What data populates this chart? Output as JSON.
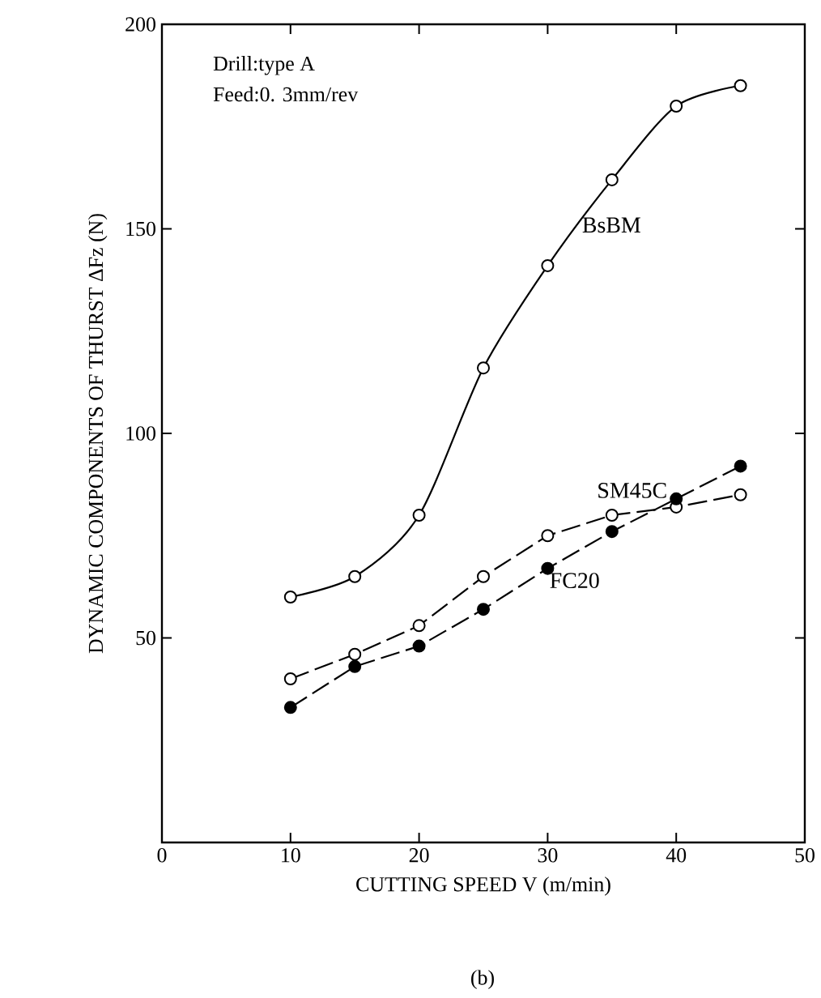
{
  "chart_data": {
    "type": "line",
    "xlabel": "CUTTING SPEED V (m/min)",
    "ylabel": "DYNAMIC COMPONENTS OF THURST ΔFz (N)",
    "x": [
      10,
      15,
      20,
      25,
      30,
      35,
      40,
      45
    ],
    "series": [
      {
        "name": "BsBM",
        "color": "#000000",
        "values": [
          60,
          65,
          80,
          116,
          141,
          162,
          180,
          185
        ],
        "line_style": "solid"
      },
      {
        "name": "SM45C",
        "color": "#000000",
        "values": [
          40,
          46,
          53,
          65,
          75,
          80,
          82,
          85
        ],
        "line_style": "dashed"
      },
      {
        "name": "FC20",
        "color": "#000000",
        "values": [
          33,
          43,
          48,
          57,
          67,
          76,
          84,
          92
        ],
        "line_style": "dashed"
      }
    ],
    "xlim": [
      0,
      50
    ],
    "ylim": [
      0,
      200
    ],
    "xticks": [
      0,
      10,
      20,
      30,
      40,
      50
    ],
    "yticks": [
      50,
      100,
      150,
      200
    ],
    "marker": "circle",
    "annotations": [
      "Drill:type A",
      "Feed:0. 3mm/rev",
      "(b)"
    ]
  }
}
